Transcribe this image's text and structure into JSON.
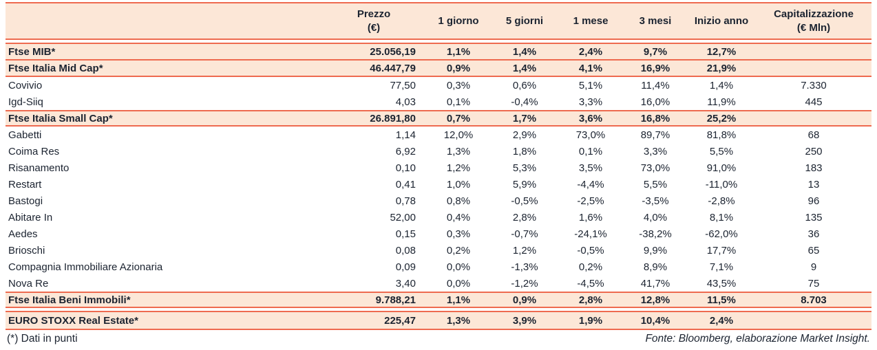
{
  "page": {
    "background": "#ffffff",
    "accent_border_color": "#ee6a4f",
    "band_background": "#fce7d7",
    "text_color": "#1b2330"
  },
  "table": {
    "columns": [
      {
        "id": "name",
        "label": ""
      },
      {
        "id": "prezzo",
        "label": "Prezzo\n(€)"
      },
      {
        "id": "d1",
        "label": "1 giorno"
      },
      {
        "id": "d5",
        "label": "5 giorni"
      },
      {
        "id": "m1",
        "label": "1 mese"
      },
      {
        "id": "m3",
        "label": "3 mesi"
      },
      {
        "id": "ytd",
        "label": "Inizio anno"
      },
      {
        "id": "cap",
        "label": "Capitalizzazione\n(€ Mln)"
      }
    ],
    "rows": [
      {
        "style": "index",
        "name": "Ftse MIB*",
        "prezzo": "25.056,19",
        "d1": "1,1%",
        "d5": "1,4%",
        "m1": "2,4%",
        "m3": "9,7%",
        "ytd": "12,7%",
        "cap": ""
      },
      {
        "style": "index",
        "name": "Ftse Italia Mid Cap*",
        "prezzo": "46.447,79",
        "d1": "0,9%",
        "d5": "1,4%",
        "m1": "4,1%",
        "m3": "16,9%",
        "ytd": "21,9%",
        "cap": ""
      },
      {
        "style": "stock",
        "name": "Covivio",
        "prezzo": "77,50",
        "d1": "0,3%",
        "d5": "0,6%",
        "m1": "5,1%",
        "m3": "11,4%",
        "ytd": "1,4%",
        "cap": "7.330"
      },
      {
        "style": "stock",
        "name": "Igd-Siiq",
        "prezzo": "4,03",
        "d1": "0,1%",
        "d5": "-0,4%",
        "m1": "3,3%",
        "m3": "16,0%",
        "ytd": "11,9%",
        "cap": "445"
      },
      {
        "style": "index",
        "name": "Ftse Italia Small Cap*",
        "prezzo": "26.891,80",
        "d1": "0,7%",
        "d5": "1,7%",
        "m1": "3,6%",
        "m3": "16,8%",
        "ytd": "25,2%",
        "cap": ""
      },
      {
        "style": "stock",
        "name": "Gabetti",
        "prezzo": "1,14",
        "d1": "12,0%",
        "d5": "2,9%",
        "m1": "73,0%",
        "m3": "89,7%",
        "ytd": "81,8%",
        "cap": "68"
      },
      {
        "style": "stock",
        "name": "Coima Res",
        "prezzo": "6,92",
        "d1": "1,3%",
        "d5": "1,8%",
        "m1": "0,1%",
        "m3": "3,3%",
        "ytd": "5,5%",
        "cap": "250"
      },
      {
        "style": "stock",
        "name": "Risanamento",
        "prezzo": "0,10",
        "d1": "1,2%",
        "d5": "5,3%",
        "m1": "3,5%",
        "m3": "73,0%",
        "ytd": "91,0%",
        "cap": "183"
      },
      {
        "style": "stock",
        "name": "Restart",
        "prezzo": "0,41",
        "d1": "1,0%",
        "d5": "5,9%",
        "m1": "-4,4%",
        "m3": "5,5%",
        "ytd": "-11,0%",
        "cap": "13"
      },
      {
        "style": "stock",
        "name": "Bastogi",
        "prezzo": "0,78",
        "d1": "0,8%",
        "d5": "-0,5%",
        "m1": "-2,5%",
        "m3": "-3,5%",
        "ytd": "-2,8%",
        "cap": "96"
      },
      {
        "style": "stock",
        "name": "Abitare In",
        "prezzo": "52,00",
        "d1": "0,4%",
        "d5": "2,8%",
        "m1": "1,6%",
        "m3": "4,0%",
        "ytd": "8,1%",
        "cap": "135"
      },
      {
        "style": "stock",
        "name": "Aedes",
        "prezzo": "0,15",
        "d1": "0,3%",
        "d5": "-0,7%",
        "m1": "-24,1%",
        "m3": "-38,2%",
        "ytd": "-62,0%",
        "cap": "36"
      },
      {
        "style": "stock",
        "name": "Brioschi",
        "prezzo": "0,08",
        "d1": "0,2%",
        "d5": "1,2%",
        "m1": "-0,5%",
        "m3": "9,9%",
        "ytd": "17,7%",
        "cap": "65"
      },
      {
        "style": "stock",
        "name": "Compagnia Immobiliare Azionaria",
        "prezzo": "0,09",
        "d1": "0,0%",
        "d5": "-1,3%",
        "m1": "0,2%",
        "m3": "8,9%",
        "ytd": "7,1%",
        "cap": "9"
      },
      {
        "style": "stock",
        "name": "Nova Re",
        "prezzo": "3,40",
        "d1": "0,0%",
        "d5": "-1,2%",
        "m1": "-4,5%",
        "m3": "41,7%",
        "ytd": "43,5%",
        "cap": "75"
      },
      {
        "style": "index",
        "name": "Ftse Italia Beni Immobili*",
        "prezzo": "9.788,21",
        "d1": "1,1%",
        "d5": "0,9%",
        "m1": "2,8%",
        "m3": "12,8%",
        "ytd": "11,5%",
        "cap": "8.703"
      }
    ],
    "euro_stoxx_row": {
      "style": "index",
      "name": "EURO STOXX Real Estate*",
      "prezzo": "225,47",
      "d1": "1,3%",
      "d5": "3,9%",
      "m1": "1,9%",
      "m3": "10,4%",
      "ytd": "2,4%",
      "cap": ""
    }
  },
  "footer": {
    "note": "(*) Dati in punti",
    "source": "Fonte: Bloomberg, elaborazione Market Insight."
  }
}
